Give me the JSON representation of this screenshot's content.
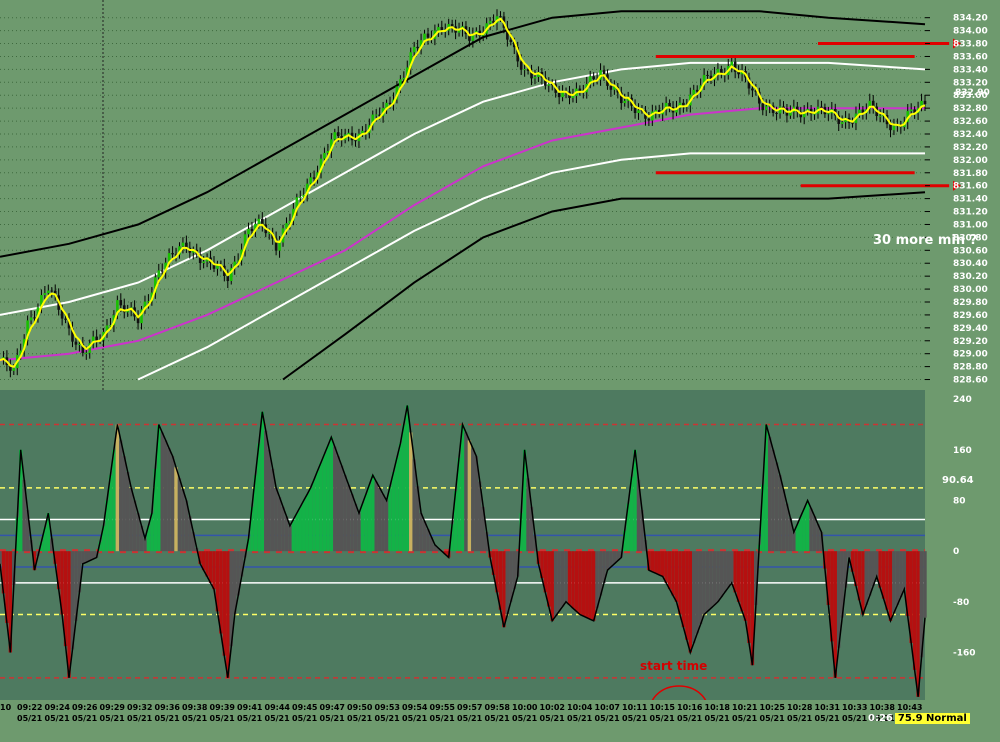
{
  "chart_data": [
    {
      "type": "candlestick",
      "panel": "price",
      "y_ticks": [
        "834.20",
        "834.00",
        "833.80",
        "833.60",
        "833.40",
        "833.20",
        "833.00",
        "832.80",
        "832.60",
        "832.40",
        "832.20",
        "832.00",
        "831.80",
        "831.60",
        "831.40",
        "831.20",
        "831.00",
        "830.80",
        "830.60",
        "830.40",
        "830.20",
        "830.00",
        "829.80",
        "829.60",
        "829.40",
        "829.20",
        "829.00",
        "828.80",
        "828.60"
      ],
      "ylim": [
        828.5,
        834.35
      ],
      "last_price": "832.90",
      "price_path_approx": [
        [
          0,
          828.9
        ],
        [
          4,
          828.7
        ],
        [
          8,
          829.5
        ],
        [
          14,
          830.0
        ],
        [
          20,
          829.4
        ],
        [
          24,
          829.0
        ],
        [
          30,
          829.3
        ],
        [
          34,
          829.8
        ],
        [
          40,
          829.5
        ],
        [
          46,
          830.3
        ],
        [
          54,
          830.7
        ],
        [
          60,
          830.4
        ],
        [
          66,
          830.2
        ],
        [
          72,
          830.9
        ],
        [
          76,
          831.0
        ],
        [
          80,
          830.7
        ],
        [
          88,
          831.5
        ],
        [
          96,
          832.3
        ],
        [
          104,
          832.4
        ],
        [
          112,
          832.8
        ],
        [
          120,
          833.7
        ],
        [
          128,
          834.1
        ],
        [
          136,
          833.9
        ],
        [
          144,
          834.2
        ],
        [
          152,
          833.4
        ],
        [
          160,
          833.1
        ],
        [
          168,
          833.0
        ],
        [
          174,
          833.4
        ],
        [
          180,
          832.9
        ],
        [
          188,
          832.7
        ],
        [
          196,
          832.8
        ],
        [
          204,
          833.2
        ],
        [
          212,
          833.5
        ],
        [
          220,
          832.9
        ],
        [
          228,
          832.7
        ],
        [
          236,
          832.8
        ],
        [
          244,
          832.6
        ],
        [
          252,
          832.8
        ],
        [
          260,
          832.5
        ],
        [
          268,
          832.9
        ]
      ],
      "bands": [
        {
          "color": "#000000",
          "pts": [
            [
              0,
              830.5
            ],
            [
              20,
              830.7
            ],
            [
              40,
              831.0
            ],
            [
              60,
              831.5
            ],
            [
              80,
              832.1
            ],
            [
              100,
              832.7
            ],
            [
              120,
              833.3
            ],
            [
              140,
              833.9
            ],
            [
              160,
              834.2
            ],
            [
              180,
              834.3
            ],
            [
              200,
              834.3
            ],
            [
              220,
              834.3
            ],
            [
              240,
              834.2
            ],
            [
              268,
              834.1
            ]
          ]
        },
        {
          "color": "#ffffff",
          "pts": [
            [
              0,
              829.6
            ],
            [
              20,
              829.8
            ],
            [
              40,
              830.1
            ],
            [
              60,
              830.6
            ],
            [
              80,
              831.2
            ],
            [
              100,
              831.8
            ],
            [
              120,
              832.4
            ],
            [
              140,
              832.9
            ],
            [
              160,
              833.2
            ],
            [
              180,
              833.4
            ],
            [
              200,
              833.5
            ],
            [
              220,
              833.5
            ],
            [
              240,
              833.5
            ],
            [
              268,
              833.4
            ]
          ]
        },
        {
          "color": "#cc33cc",
          "pts": [
            [
              0,
              828.9
            ],
            [
              20,
              829.0
            ],
            [
              40,
              829.2
            ],
            [
              60,
              829.6
            ],
            [
              80,
              830.1
            ],
            [
              100,
              830.6
            ],
            [
              120,
              831.3
            ],
            [
              140,
              831.9
            ],
            [
              160,
              832.3
            ],
            [
              180,
              832.5
            ],
            [
              200,
              832.7
            ],
            [
              220,
              832.8
            ],
            [
              240,
              832.8
            ],
            [
              268,
              832.8
            ]
          ]
        },
        {
          "color": "#ffffff",
          "pts": [
            [
              40,
              828.6
            ],
            [
              60,
              829.1
            ],
            [
              80,
              829.7
            ],
            [
              100,
              830.3
            ],
            [
              120,
              830.9
            ],
            [
              140,
              831.4
            ],
            [
              160,
              831.8
            ],
            [
              180,
              832.0
            ],
            [
              200,
              832.1
            ],
            [
              220,
              832.1
            ],
            [
              240,
              832.1
            ],
            [
              268,
              832.1
            ]
          ]
        },
        {
          "color": "#000000",
          "pts": [
            [
              82,
              828.6
            ],
            [
              100,
              829.3
            ],
            [
              120,
              830.1
            ],
            [
              140,
              830.8
            ],
            [
              160,
              831.2
            ],
            [
              180,
              831.4
            ],
            [
              200,
              831.4
            ],
            [
              220,
              831.4
            ],
            [
              240,
              831.4
            ],
            [
              268,
              831.5
            ]
          ]
        }
      ],
      "levels": [
        {
          "y": 833.6,
          "x0": 190,
          "x1": 265,
          "color": "#e00000"
        },
        {
          "y": 831.8,
          "x0": 190,
          "x1": 265,
          "color": "#e00000"
        },
        {
          "y": 833.8,
          "x0": 237,
          "x1": 275,
          "color": "#e00000",
          "arrow": true
        },
        {
          "y": 831.6,
          "x0": 232,
          "x1": 275,
          "color": "#e00000",
          "arrow": true
        }
      ]
    },
    {
      "type": "area",
      "panel": "oscillator",
      "y_ticks": [
        "240",
        "160",
        "80",
        "0",
        "-80",
        "-160"
      ],
      "y_tick_values": [
        240,
        160,
        80,
        0,
        -80,
        -160
      ],
      "ylim": [
        -235,
        245
      ],
      "last_value": "90.64",
      "levels": [
        {
          "v": 200,
          "color": "#cc3333",
          "dash": true
        },
        {
          "v": 100,
          "color": "#ffff66",
          "dash": true
        },
        {
          "v": 50,
          "color": "#ffffff"
        },
        {
          "v": 25,
          "color": "#3355aa"
        },
        {
          "v": 0,
          "color": "#cc3333",
          "dash": true
        },
        {
          "v": -25,
          "color": "#3355aa"
        },
        {
          "v": -50,
          "color": "#ffffff"
        },
        {
          "v": -100,
          "color": "#ffff66",
          "dash": true
        },
        {
          "v": -200,
          "color": "#cc3333",
          "dash": true
        }
      ],
      "series_path_approx": [
        [
          0,
          -20
        ],
        [
          3,
          -160
        ],
        [
          6,
          160
        ],
        [
          10,
          -30
        ],
        [
          14,
          60
        ],
        [
          18,
          -100
        ],
        [
          20,
          -200
        ],
        [
          24,
          -20
        ],
        [
          28,
          -10
        ],
        [
          30,
          40
        ],
        [
          34,
          200
        ],
        [
          38,
          100
        ],
        [
          42,
          20
        ],
        [
          44,
          60
        ],
        [
          46,
          200
        ],
        [
          50,
          150
        ],
        [
          54,
          80
        ],
        [
          58,
          -20
        ],
        [
          62,
          -60
        ],
        [
          66,
          -200
        ],
        [
          68,
          -100
        ],
        [
          72,
          20
        ],
        [
          76,
          220
        ],
        [
          80,
          100
        ],
        [
          84,
          40
        ],
        [
          90,
          100
        ],
        [
          96,
          180
        ],
        [
          100,
          120
        ],
        [
          104,
          60
        ],
        [
          108,
          120
        ],
        [
          112,
          80
        ],
        [
          116,
          170
        ],
        [
          118,
          230
        ],
        [
          122,
          60
        ],
        [
          126,
          10
        ],
        [
          130,
          -10
        ],
        [
          134,
          200
        ],
        [
          138,
          150
        ],
        [
          142,
          -10
        ],
        [
          146,
          -120
        ],
        [
          150,
          -40
        ],
        [
          152,
          160
        ],
        [
          156,
          -20
        ],
        [
          160,
          -110
        ],
        [
          164,
          -80
        ],
        [
          168,
          -100
        ],
        [
          172,
          -110
        ],
        [
          176,
          -30
        ],
        [
          180,
          -10
        ],
        [
          184,
          160
        ],
        [
          188,
          -30
        ],
        [
          192,
          -40
        ],
        [
          196,
          -80
        ],
        [
          200,
          -160
        ],
        [
          204,
          -100
        ],
        [
          208,
          -80
        ],
        [
          212,
          -50
        ],
        [
          216,
          -110
        ],
        [
          218,
          -180
        ],
        [
          222,
          200
        ],
        [
          226,
          120
        ],
        [
          230,
          30
        ],
        [
          234,
          80
        ],
        [
          238,
          30
        ],
        [
          242,
          -200
        ],
        [
          246,
          -10
        ],
        [
          250,
          -100
        ],
        [
          254,
          -40
        ],
        [
          258,
          -110
        ],
        [
          262,
          -60
        ],
        [
          266,
          -230
        ],
        [
          270,
          20
        ],
        [
          274,
          160
        ],
        [
          278,
          80
        ]
      ],
      "annotation_start_time": "start time"
    }
  ],
  "time_labels": [
    "10",
    "09:22",
    "09:24",
    "09:26",
    "09:29",
    "09:32",
    "09:36",
    "09:38",
    "09:39",
    "09:41",
    "09:44",
    "09:45",
    "09:47",
    "09:50",
    "09:53",
    "09:54",
    "09:55",
    "09:57",
    "09:58",
    "10:00",
    "10:02",
    "10:04",
    "10:07",
    "10:11",
    "10:15",
    "10:16",
    "10:18",
    "10:21",
    "10:25",
    "10:28",
    "10:31",
    "10:33",
    "10:38",
    "10:43"
  ],
  "date_label": "05/21",
  "annotation_note": "30 more min ?",
  "status": {
    "time": "0:26",
    "mode": "75.9 Normal"
  },
  "colors": {
    "background": "#6e9a6e",
    "osc_panel": "#4e7a60",
    "up_fill": "#13b247",
    "down_fill": "#b51010",
    "neutral_fill": "#555555",
    "smooth_line": "#ffff00",
    "level_red": "#e00000"
  }
}
